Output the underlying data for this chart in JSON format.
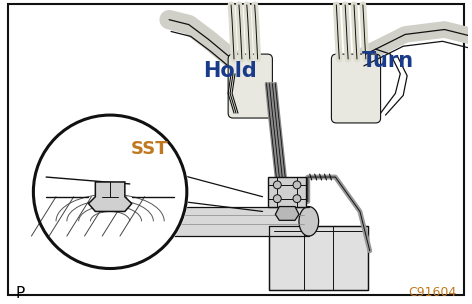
{
  "border_color": "#000000",
  "background_color": "#ffffff",
  "label_hold": "Hold",
  "label_turn": "Turn",
  "label_sst": "SST",
  "label_p": "P",
  "label_code": "C91604",
  "label_hold_color": "#1a3a8a",
  "label_turn_color": "#1a3a8a",
  "label_sst_color": "#c07820",
  "label_code_color": "#c07820",
  "label_p_color": "#000000",
  "fig_width": 4.72,
  "fig_height": 3.04,
  "dpi": 100
}
